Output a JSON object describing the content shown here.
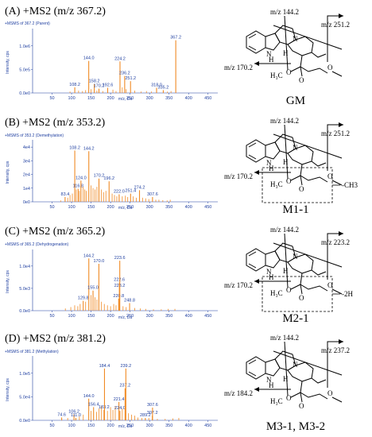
{
  "colors": {
    "peak": "#f08a24",
    "axis": "#1f3fa0",
    "text": "#000000"
  },
  "chart_data": [
    {
      "type": "bar",
      "title": "(A) +MS2 (m/z 367.2)",
      "subtitle": "+MSMS of 367.2 (Parent)",
      "xlabel": "m/z, Da",
      "ylabel": "Intensity, cps",
      "xlim": [
        0,
        475
      ],
      "ylim": [
        0,
        1.3
      ],
      "xticks": [
        50,
        100,
        150,
        200,
        250,
        300,
        350,
        400,
        450
      ],
      "yticks": [
        {
          "v": 0,
          "t": "0.0e0"
        },
        {
          "v": 0.5,
          "t": "5.0e5"
        },
        {
          "v": 1.0,
          "t": "1.0e6"
        }
      ],
      "peaks": [
        {
          "x": 108.2,
          "y": 0.12,
          "label": "108.2"
        },
        {
          "x": 144.0,
          "y": 0.68,
          "label": "144.0"
        },
        {
          "x": 158.2,
          "y": 0.19,
          "label": "158.2"
        },
        {
          "x": 170.2,
          "y": 0.09,
          "label": "170.2"
        },
        {
          "x": 192.6,
          "y": 0.11,
          "label": "192.6"
        },
        {
          "x": 224.2,
          "y": 0.67,
          "label": "224.2"
        },
        {
          "x": 236.2,
          "y": 0.36,
          "label": "236.2"
        },
        {
          "x": 251.2,
          "y": 0.25,
          "label": "251.2"
        },
        {
          "x": 318.0,
          "y": 0.11,
          "label": "318.0"
        },
        {
          "x": 335.2,
          "y": 0.06,
          "label": "335.2"
        },
        {
          "x": 367.2,
          "y": 1.12,
          "label": "367.2"
        }
      ],
      "minor": [
        [
          96,
          0.03
        ],
        [
          118,
          0.05
        ],
        [
          128,
          0.04
        ],
        [
          136,
          0.06
        ],
        [
          150,
          0.08
        ],
        [
          165,
          0.05
        ],
        [
          180,
          0.04
        ],
        [
          206,
          0.07
        ],
        [
          214,
          0.04
        ],
        [
          230,
          0.12
        ],
        [
          240,
          0.08
        ],
        [
          262,
          0.05
        ],
        [
          278,
          0.03
        ],
        [
          292,
          0.04
        ],
        [
          305,
          0.03
        ],
        [
          346,
          0.03
        ],
        [
          355,
          0.04
        ]
      ]
    },
    {
      "type": "bar",
      "title": "(B) +MS2 (m/z 353.2)",
      "subtitle": "+MSMS of 353.2 (Demethylation)",
      "xlabel": "m/z, Da",
      "ylabel": "Intensity, cps",
      "xlim": [
        0,
        475
      ],
      "ylim": [
        0,
        4.3
      ],
      "xticks": [
        50,
        100,
        150,
        200,
        250,
        300,
        350,
        400,
        450
      ],
      "yticks": [
        {
          "v": 0,
          "t": "0e0"
        },
        {
          "v": 1,
          "t": "1e4"
        },
        {
          "v": 2,
          "t": "2e4"
        },
        {
          "v": 3,
          "t": "3e4"
        },
        {
          "v": 4,
          "t": "4e4"
        }
      ],
      "peaks": [
        {
          "x": 83.4,
          "y": 0.35,
          "label": "83.4"
        },
        {
          "x": 108.2,
          "y": 3.75,
          "label": "108.2"
        },
        {
          "x": 116.8,
          "y": 0.95,
          "label": "116.8"
        },
        {
          "x": 124.0,
          "y": 1.55,
          "label": "124.0"
        },
        {
          "x": 144.2,
          "y": 3.7,
          "label": "144.2"
        },
        {
          "x": 170.2,
          "y": 1.7,
          "label": "170.2"
        },
        {
          "x": 196.2,
          "y": 1.5,
          "label": "196.2"
        },
        {
          "x": 222.0,
          "y": 0.55,
          "label": "222.0"
        },
        {
          "x": 251.4,
          "y": 0.6,
          "label": "251.4"
        },
        {
          "x": 274.2,
          "y": 0.85,
          "label": "274.2"
        },
        {
          "x": 307.6,
          "y": 0.35,
          "label": "307.6"
        }
      ],
      "minor": [
        [
          72,
          0.1
        ],
        [
          90,
          0.3
        ],
        [
          96,
          0.5
        ],
        [
          102,
          0.6
        ],
        [
          112,
          0.9
        ],
        [
          120,
          0.8
        ],
        [
          130,
          1.1
        ],
        [
          134,
          0.9
        ],
        [
          138,
          0.8
        ],
        [
          150,
          1.2
        ],
        [
          155,
          1.0
        ],
        [
          160,
          0.9
        ],
        [
          165,
          1.1
        ],
        [
          176,
          0.9
        ],
        [
          182,
          0.7
        ],
        [
          188,
          0.8
        ],
        [
          204,
          0.6
        ],
        [
          210,
          0.5
        ],
        [
          216,
          0.4
        ],
        [
          230,
          0.4
        ],
        [
          238,
          0.45
        ],
        [
          244,
          0.35
        ],
        [
          258,
          0.4
        ],
        [
          266,
          0.3
        ],
        [
          282,
          0.3
        ],
        [
          290,
          0.25
        ],
        [
          298,
          0.2
        ],
        [
          316,
          0.15
        ],
        [
          324,
          0.15
        ],
        [
          334,
          0.12
        ],
        [
          345,
          0.1
        ],
        [
          353,
          0.15
        ]
      ]
    },
    {
      "type": "bar",
      "title": "(C) +MS2 (m/z 365.2)",
      "subtitle": "+MSMS of 365.2 (Dehydrogenation)",
      "xlabel": "m/z, Da",
      "ylabel": "Intensity, cps",
      "xlim": [
        0,
        475
      ],
      "ylim": [
        0,
        1.3
      ],
      "xticks": [
        50,
        100,
        150,
        200,
        250,
        300,
        350,
        400,
        450
      ],
      "yticks": [
        {
          "v": 0,
          "t": "0.0e0"
        },
        {
          "v": 0.5,
          "t": "5.0e3"
        },
        {
          "v": 1.0,
          "t": "1.0e4"
        }
      ],
      "peaks": [
        {
          "x": 129.8,
          "y": 0.22,
          "label": "129.8"
        },
        {
          "x": 144.2,
          "y": 1.17,
          "label": "144.2"
        },
        {
          "x": 155.0,
          "y": 0.45,
          "label": "155.0"
        },
        {
          "x": 170.0,
          "y": 1.05,
          "label": "170.0"
        },
        {
          "x": 220.8,
          "y": 0.27,
          "label": "220.8"
        },
        {
          "x": 222.6,
          "y": 0.63,
          "label": "222.6"
        },
        {
          "x": 223.2,
          "y": 0.5,
          "label": "223.2"
        },
        {
          "x": 223.6,
          "y": 1.12,
          "label": "223.6"
        },
        {
          "x": 248.8,
          "y": 0.17,
          "label": "248.8"
        }
      ],
      "minor": [
        [
          84,
          0.05
        ],
        [
          98,
          0.08
        ],
        [
          108,
          0.12
        ],
        [
          116,
          0.1
        ],
        [
          122,
          0.15
        ],
        [
          136,
          0.2
        ],
        [
          150,
          0.35
        ],
        [
          160,
          0.3
        ],
        [
          165,
          0.25
        ],
        [
          176,
          0.2
        ],
        [
          184,
          0.15
        ],
        [
          192,
          0.12
        ],
        [
          200,
          0.1
        ],
        [
          208,
          0.15
        ],
        [
          214,
          0.12
        ],
        [
          232,
          0.1
        ],
        [
          240,
          0.08
        ],
        [
          262,
          0.06
        ],
        [
          276,
          0.05
        ],
        [
          290,
          0.04
        ],
        [
          310,
          0.03
        ],
        [
          330,
          0.03
        ],
        [
          348,
          0.04
        ],
        [
          365,
          0.04
        ]
      ]
    },
    {
      "type": "bar",
      "title": "(D) +MS2 (m/z 381.2)",
      "subtitle": "+MSMS of 381.2 (Methylation)",
      "xlabel": "m/z, Da",
      "ylabel": "Intensity, cps",
      "xlim": [
        0,
        475
      ],
      "ylim": [
        0,
        1.3
      ],
      "xticks": [
        50,
        100,
        150,
        200,
        250,
        300,
        350,
        400,
        450
      ],
      "yticks": [
        {
          "v": 0,
          "t": "0.0e0"
        },
        {
          "v": 0.5,
          "t": "5.0e4"
        },
        {
          "v": 1.0,
          "t": "1.0e5"
        }
      ],
      "peaks": [
        {
          "x": 74.6,
          "y": 0.06,
          "label": "74.6"
        },
        {
          "x": 106.2,
          "y": 0.13,
          "label": "106.2"
        },
        {
          "x": 111.0,
          "y": 0.05,
          "label": "111.0"
        },
        {
          "x": 144.0,
          "y": 0.46,
          "label": "144.0"
        },
        {
          "x": 156.4,
          "y": 0.28,
          "label": "156.4"
        },
        {
          "x": 183.2,
          "y": 0.22,
          "label": "183.2"
        },
        {
          "x": 184.4,
          "y": 1.1,
          "label": "184.4"
        },
        {
          "x": 221.4,
          "y": 0.39,
          "label": "221.4"
        },
        {
          "x": 224.0,
          "y": 0.2,
          "label": "224.0"
        },
        {
          "x": 237.2,
          "y": 0.68,
          "label": "237.2"
        },
        {
          "x": 239.2,
          "y": 1.1,
          "label": "239.2"
        },
        {
          "x": 289.2,
          "y": 0.05,
          "label": "289.2"
        },
        {
          "x": 307.2,
          "y": 0.1,
          "label": "307.2"
        },
        {
          "x": 307.6,
          "y": 0.27,
          "label": "307.6"
        }
      ],
      "minor": [
        [
          90,
          0.05
        ],
        [
          120,
          0.08
        ],
        [
          130,
          0.12
        ],
        [
          150,
          0.2
        ],
        [
          164,
          0.18
        ],
        [
          170,
          0.25
        ],
        [
          176,
          0.3
        ],
        [
          192,
          0.2
        ],
        [
          200,
          0.28
        ],
        [
          206,
          0.22
        ],
        [
          212,
          0.3
        ],
        [
          230,
          0.25
        ],
        [
          246,
          0.15
        ],
        [
          254,
          0.12
        ],
        [
          262,
          0.1
        ],
        [
          270,
          0.06
        ],
        [
          280,
          0.05
        ],
        [
          298,
          0.05
        ],
        [
          320,
          0.03
        ],
        [
          340,
          0.03
        ],
        [
          360,
          0.04
        ],
        [
          375,
          0.05
        ]
      ]
    }
  ],
  "structures": [
    {
      "name": "GM",
      "labels": [
        "m/z 144.2",
        "m/z 251.2",
        "m/z 170.2"
      ],
      "loss": ""
    },
    {
      "name": "M1-1",
      "labels": [
        "m/z 144.2",
        "m/z 251.2",
        "m/z 170.2"
      ],
      "loss": "-CH3"
    },
    {
      "name": "M2-1",
      "labels": [
        "m/z 144.2",
        "m/z 223.2",
        "m/z 170.2"
      ],
      "loss": "-2H"
    },
    {
      "name": "M3-1, M3-2",
      "labels": [
        "m/z 144.2",
        "m/z 237.2",
        "m/z 184.2"
      ],
      "loss": ""
    }
  ]
}
